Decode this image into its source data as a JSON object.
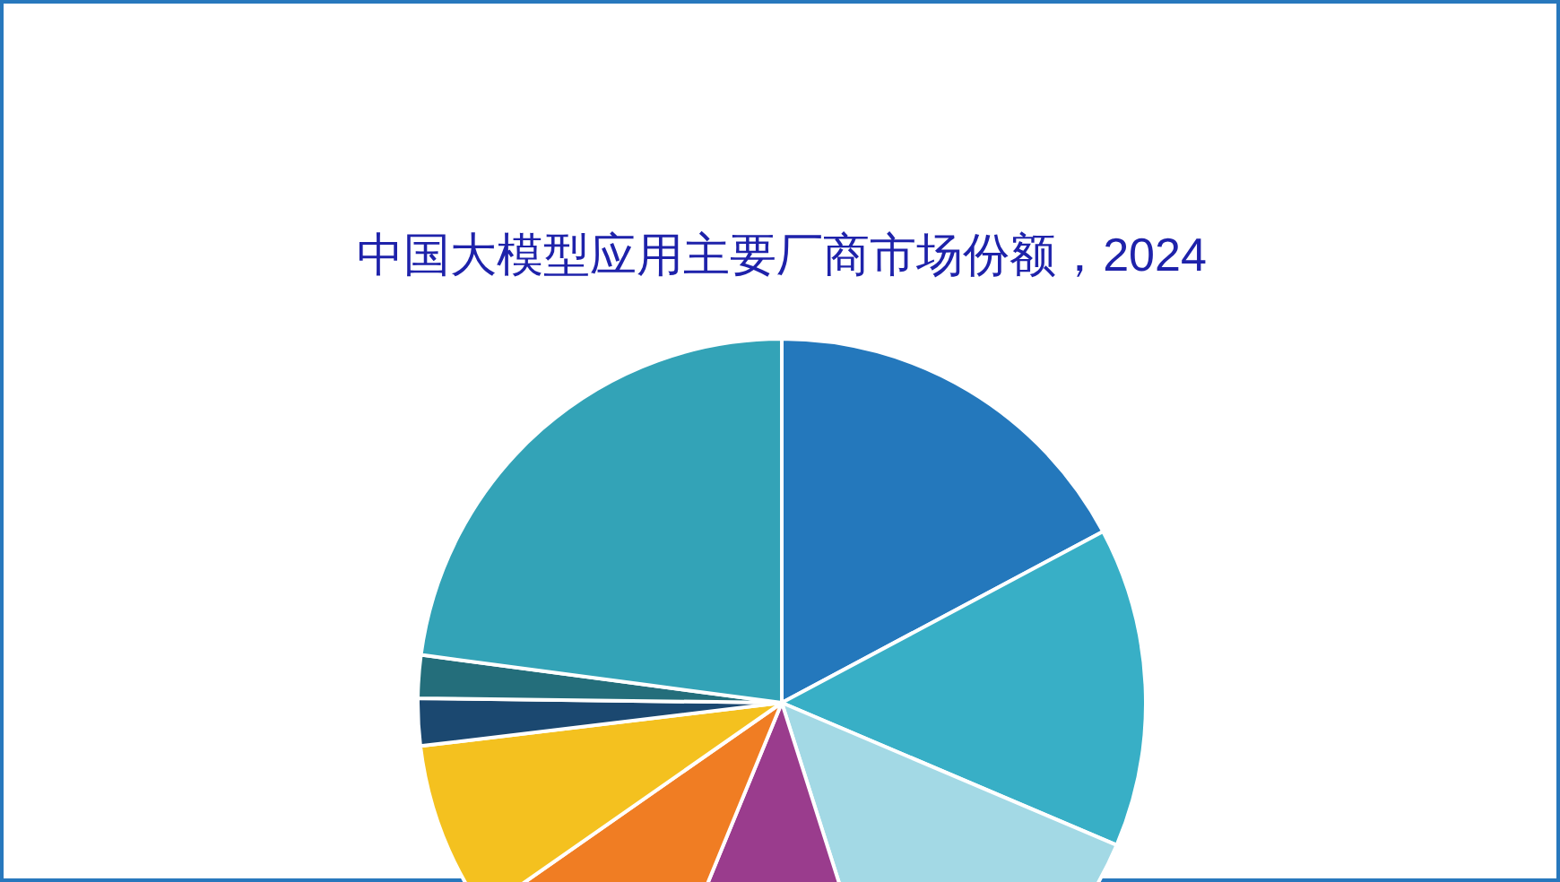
{
  "chart_data": {
    "type": "pie",
    "title": "中国大模型应用主要厂商市场份额，2024",
    "categories": [
      null,
      null,
      null,
      null,
      null,
      null,
      null,
      null,
      null
    ],
    "values": [
      17.2,
      14.2,
      13.7,
      11.1,
      9.1,
      7.8,
      2.1,
      1.9,
      22.9
    ],
    "colors": [
      "#2478bc",
      "#38afc6",
      "#a3d9e5",
      "#9a3c8d",
      "#f07d23",
      "#f4c11f",
      "#1b4870",
      "#246e7b",
      "#33a3b7"
    ]
  }
}
